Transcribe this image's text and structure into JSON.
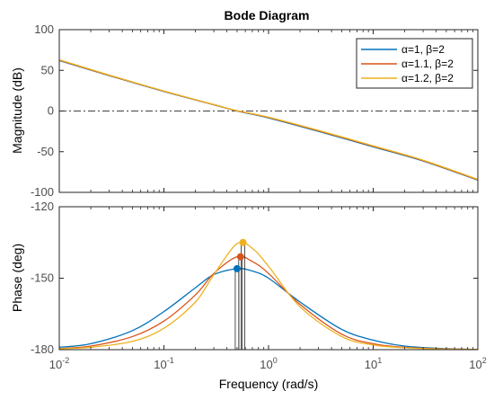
{
  "chart_data": {
    "type": "line",
    "title": "Bode Diagram",
    "xlabel": "Frequency  (rad/s)",
    "xscale": "log",
    "xlim": [
      0.01,
      100
    ],
    "x_ticks": [
      {
        "base": "10",
        "exp": "-2"
      },
      {
        "base": "10",
        "exp": "-1"
      },
      {
        "base": "10",
        "exp": "0"
      },
      {
        "base": "10",
        "exp": "1"
      },
      {
        "base": "10",
        "exp": "2"
      }
    ],
    "legend_location": "top-right",
    "legend": [
      {
        "alpha": "α=1, ",
        "beta": "β=2",
        "color": "#0072bd"
      },
      {
        "alpha": "α=1.1, ",
        "beta": "β=2",
        "color": "#d95319"
      },
      {
        "alpha": "α=1.2, ",
        "beta": "β=2",
        "color": "#edb120"
      }
    ],
    "magnitude": {
      "ylabel": "Magnitude (dB)",
      "ylim": [
        -100,
        100
      ],
      "y_ticks": [
        "100",
        "50",
        "0",
        "-50",
        "-100"
      ],
      "reference_line_db": 0,
      "series": [
        {
          "x": [
            0.01,
            0.03,
            0.1,
            0.3,
            0.5,
            1,
            3,
            10,
            30,
            100
          ],
          "y": [
            62,
            43.5,
            24,
            7.6,
            0,
            -8.5,
            -25,
            -44,
            -61.5,
            -85
          ]
        },
        {
          "x": [
            0.01,
            0.03,
            0.1,
            0.3,
            0.5,
            1,
            3,
            10,
            30,
            100
          ],
          "y": [
            62.5,
            43.8,
            24.3,
            7.8,
            0.2,
            -8.0,
            -24.3,
            -43.3,
            -61,
            -84.5
          ]
        },
        {
          "x": [
            0.01,
            0.03,
            0.1,
            0.3,
            0.5,
            1,
            3,
            10,
            30,
            100
          ],
          "y": [
            63,
            44.2,
            24.6,
            8.0,
            0.4,
            -7.6,
            -23.8,
            -42.8,
            -60.5,
            -84
          ]
        }
      ]
    },
    "phase": {
      "ylabel": "Phase (deg)",
      "ylim": [
        -180,
        -120
      ],
      "y_ticks": [
        "-120",
        "-150",
        "-180"
      ],
      "reference_line_deg": -180,
      "series": [
        {
          "x": [
            0.01,
            0.02,
            0.05,
            0.1,
            0.2,
            0.3,
            0.5,
            0.7,
            1,
            2,
            5,
            10,
            20,
            50,
            100
          ],
          "y": [
            -179,
            -177.5,
            -172,
            -164,
            -154,
            -148.5,
            -146,
            -147,
            -150,
            -160,
            -171.5,
            -176,
            -178.5,
            -179.6,
            -179.9
          ],
          "peak": {
            "x": 0.5,
            "y": -146
          }
        },
        {
          "x": [
            0.01,
            0.02,
            0.05,
            0.1,
            0.2,
            0.3,
            0.5,
            0.7,
            1,
            2,
            5,
            10,
            20,
            50,
            100
          ],
          "y": [
            -179.5,
            -178.5,
            -174.5,
            -168,
            -157,
            -148,
            -141,
            -143,
            -148,
            -161,
            -173.5,
            -177.5,
            -179,
            -179.7,
            -179.9
          ],
          "peak": {
            "x": 0.54,
            "y": -141
          }
        },
        {
          "x": [
            0.01,
            0.02,
            0.05,
            0.1,
            0.2,
            0.3,
            0.5,
            0.7,
            1,
            2,
            5,
            10,
            20,
            50,
            100
          ],
          "y": [
            -179.6,
            -179,
            -176.5,
            -171,
            -160,
            -148.5,
            -135.5,
            -137.5,
            -145,
            -162,
            -174.5,
            -178,
            -179.2,
            -179.8,
            -179.95
          ],
          "peak": {
            "x": 0.57,
            "y": -135
          }
        }
      ]
    }
  }
}
